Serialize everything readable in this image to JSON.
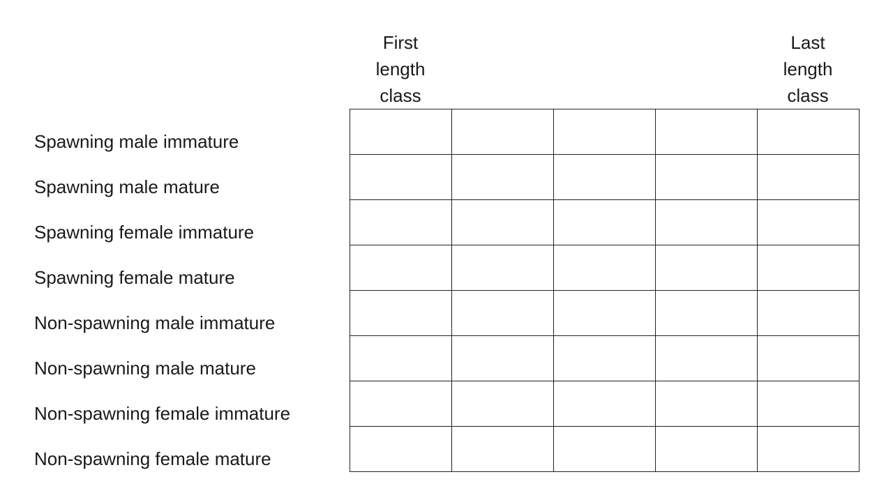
{
  "columns": {
    "first": [
      "First",
      "length",
      "class"
    ],
    "last": [
      "Last",
      "length",
      "class"
    ],
    "count": 5
  },
  "rows": [
    "Spawning male immature",
    "Spawning male mature",
    "Spawning female immature",
    "Spawning female mature",
    "Non-spawning male immature",
    "Non-spawning male mature",
    "Non-spawning female immature",
    "Non-spawning female mature"
  ]
}
